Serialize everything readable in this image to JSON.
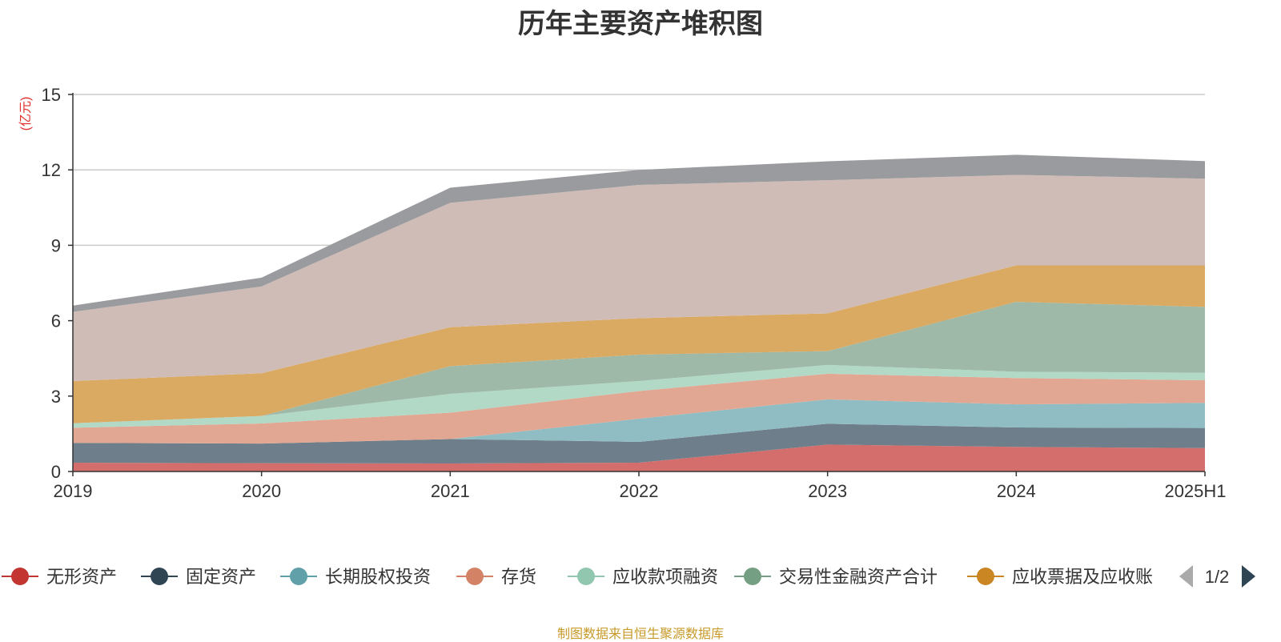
{
  "chart_data": {
    "type": "area",
    "stacked": true,
    "title": "历年主要资产堆积图",
    "y_unit_label": "(亿元)",
    "ylim": [
      0,
      15
    ],
    "y_ticks": [
      0,
      3,
      6,
      9,
      12,
      15
    ],
    "x": [
      "2019",
      "2020",
      "2021",
      "2022",
      "2023",
      "2024",
      "2025H1"
    ],
    "grid": true,
    "legend_position": "bottom",
    "legend_page": "1/2",
    "series": [
      {
        "name": "无形资产",
        "color": "#c23531",
        "fill": "#d46e6c",
        "values": [
          0.35,
          0.33,
          0.32,
          0.35,
          1.07,
          0.98,
          0.93
        ]
      },
      {
        "name": "固定资产",
        "color": "#2f4554",
        "fill": "#6e7e8a",
        "values": [
          0.79,
          0.78,
          0.97,
          0.83,
          0.83,
          0.77,
          0.8
        ]
      },
      {
        "name": "长期股权投资",
        "color": "#61a0a8",
        "fill": "#90bdc3",
        "values": [
          0.0,
          0.0,
          0.0,
          0.92,
          0.97,
          0.92,
          1.0
        ]
      },
      {
        "name": "存货",
        "color": "#d48265",
        "fill": "#e1a793",
        "values": [
          0.6,
          0.8,
          1.05,
          1.1,
          1.02,
          1.05,
          0.9
        ]
      },
      {
        "name": "应收款项融资",
        "color": "#91c7ae",
        "fill": "#b2d8c6",
        "values": [
          0.18,
          0.3,
          0.75,
          0.4,
          0.35,
          0.25,
          0.3
        ]
      },
      {
        "name": "交易性金融资产合计",
        "color": "#749f83",
        "fill": "#9eb9a7",
        "values": [
          0.0,
          0.0,
          1.1,
          1.05,
          0.55,
          2.78,
          2.62
        ]
      },
      {
        "name": "应收票据及应收账",
        "color": "#ca8622",
        "fill": "#daaa63",
        "values": [
          1.68,
          1.7,
          1.55,
          1.45,
          1.5,
          1.45,
          1.65
        ]
      },
      {
        "name": "",
        "color": "#bda29a",
        "fill": "#d0bcb7",
        "values": [
          2.75,
          3.45,
          4.95,
          5.3,
          5.3,
          3.6,
          3.45
        ]
      },
      {
        "name": "",
        "color": "#6e7074",
        "fill": "#9a9b9e",
        "values": [
          0.25,
          0.35,
          0.6,
          0.6,
          0.75,
          0.8,
          0.7
        ]
      }
    ]
  },
  "source_note": "制图数据来自恒生聚源数据库"
}
